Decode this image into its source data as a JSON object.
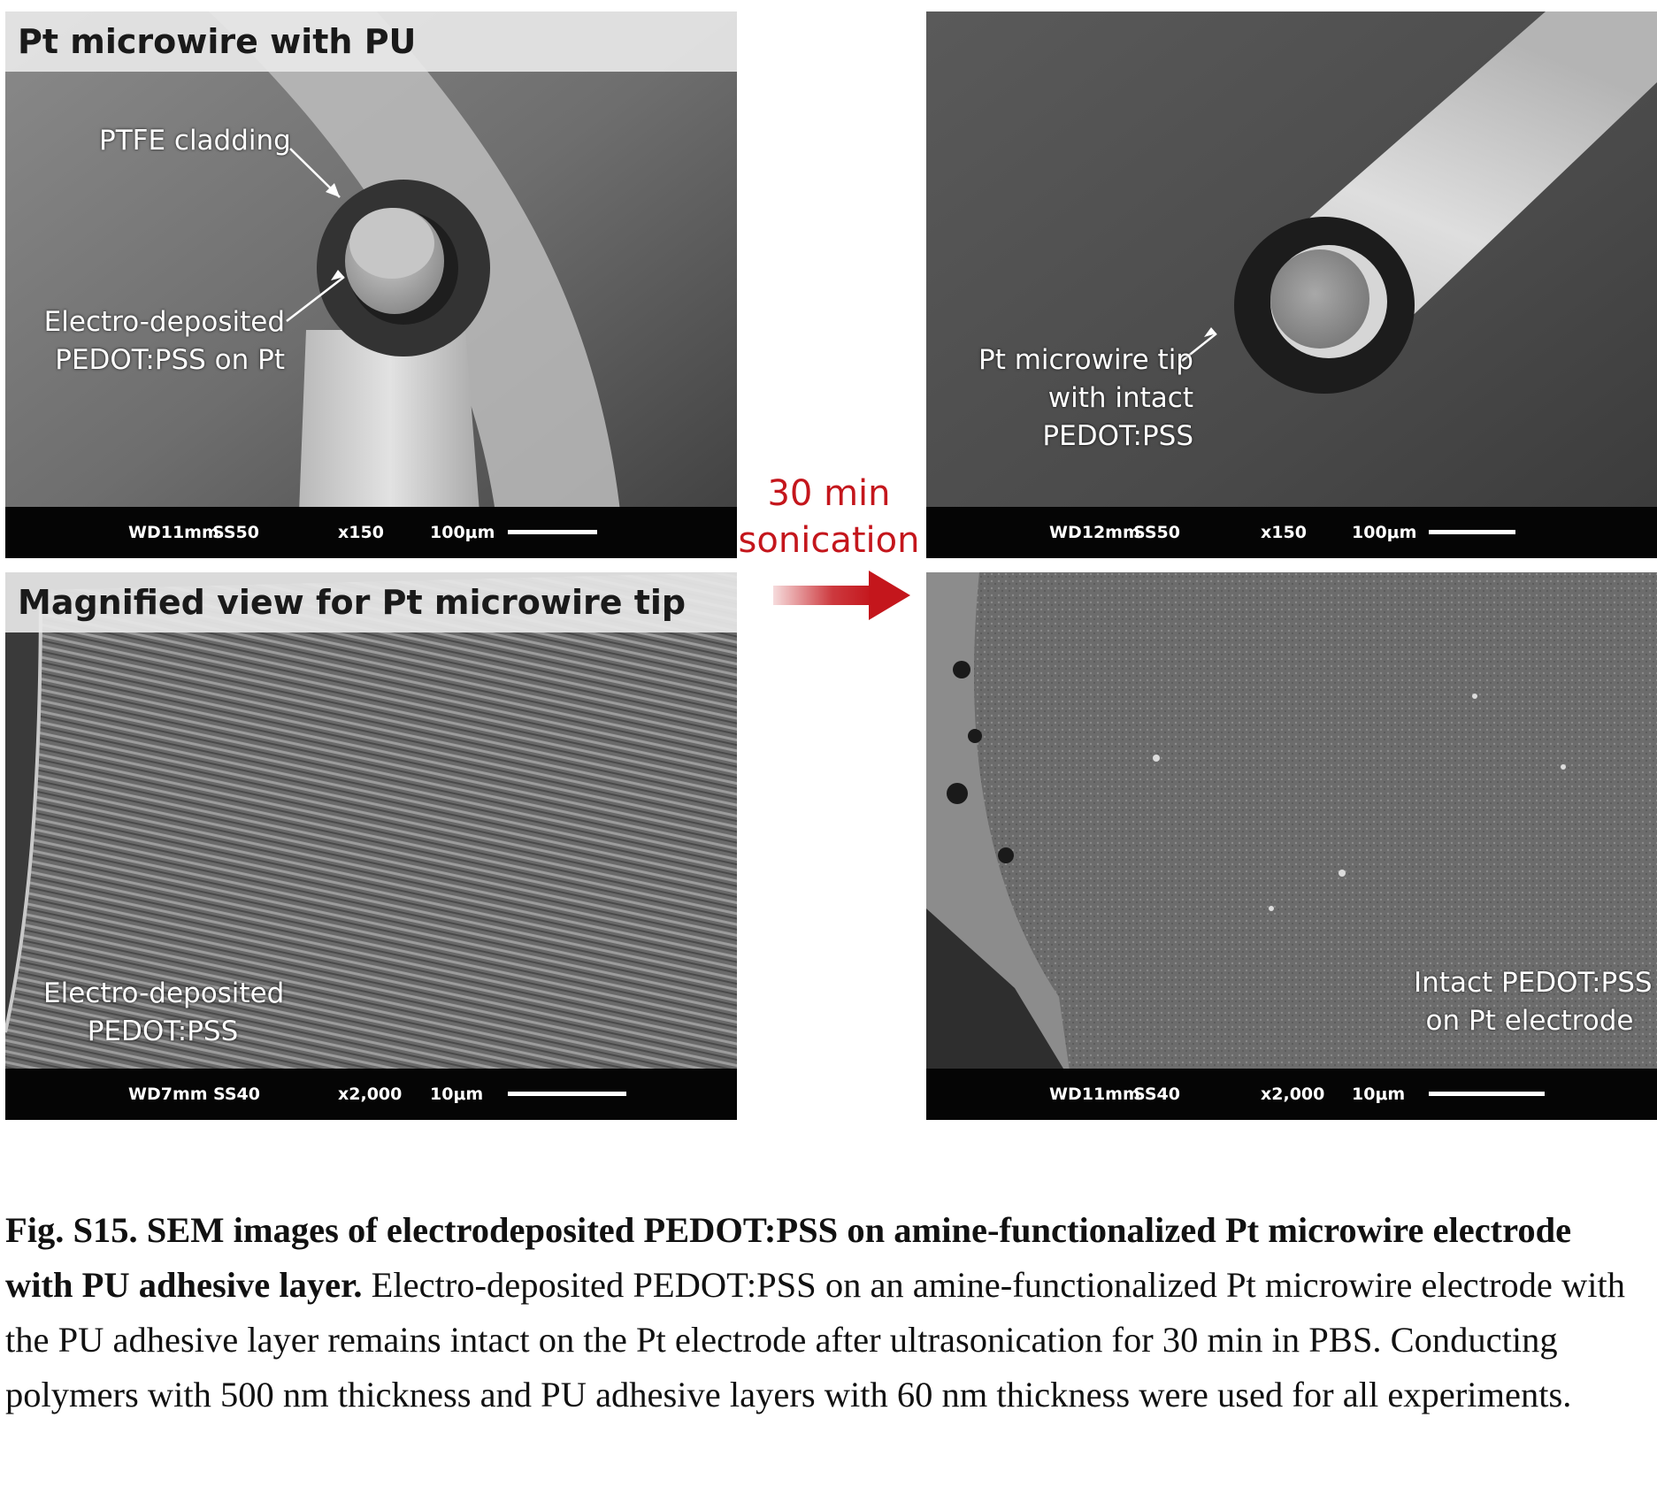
{
  "panels": {
    "top_left": {
      "title": "Pt microwire with PU",
      "labels": {
        "ptfe": "PTFE cladding",
        "pedot_line1": "Electro-deposited",
        "pedot_line2": "PEDOT:PSS on Pt"
      },
      "info": {
        "wd": "WD11mm",
        "ss": "SS50",
        "mag": "x150",
        "scale": "100μm"
      }
    },
    "top_right": {
      "labels": {
        "line1": "Pt microwire tip",
        "line2": "with intact",
        "line3": "PEDOT:PSS"
      },
      "info": {
        "wd": "WD12mm",
        "ss": "SS50",
        "mag": "x150",
        "scale": "100μm"
      }
    },
    "bottom_left": {
      "title": "Magnified view for Pt microwire tip",
      "labels": {
        "line1": "Electro-deposited",
        "line2": "PEDOT:PSS"
      },
      "info": {
        "wd": "WD7mm",
        "ss": "SS40",
        "mag": "x2,000",
        "scale": "10μm"
      }
    },
    "bottom_right": {
      "labels": {
        "line1": "Intact PEDOT:PSS",
        "line2": "on Pt electrode"
      },
      "info": {
        "wd": "WD11mm",
        "ss": "SS40",
        "mag": "x2,000",
        "scale": "10μm"
      }
    }
  },
  "arrow": {
    "line1": "30 min",
    "line2": "sonication",
    "color": "#c4161c"
  },
  "caption": {
    "bold": "Fig. S15. SEM images of electrodeposited PEDOT:PSS on amine-functionalized Pt microwire electrode with PU adhesive layer.",
    "text": "Electro-deposited PEDOT:PSS on an amine-functionalized Pt microwire electrode with the PU adhesive layer remains intact on the Pt electrode after ultrasonication for 30 min in PBS. Conducting polymers with 500 nm thickness and PU adhesive layers with 60 nm thickness were used for all experiments."
  }
}
